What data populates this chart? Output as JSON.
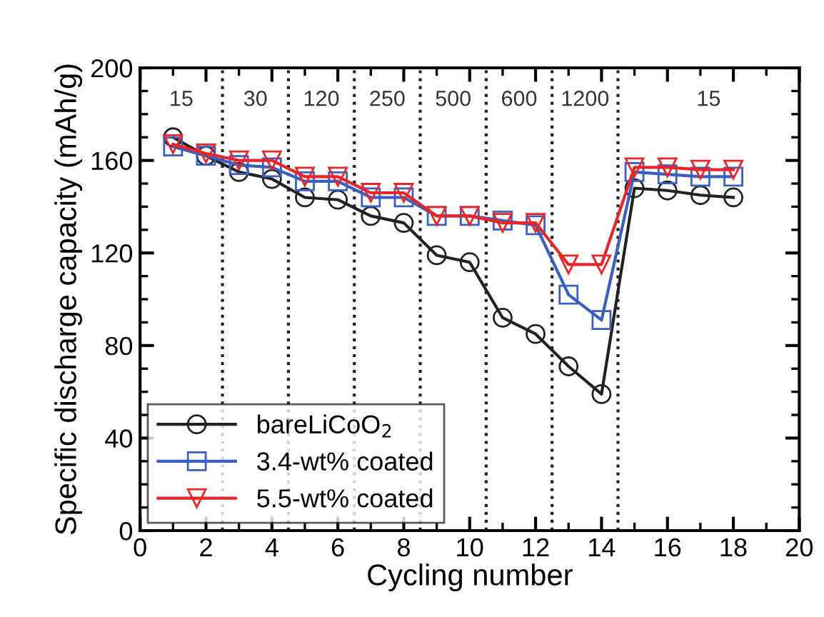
{
  "chart_data": {
    "type": "line",
    "xlabel": "Cycling number",
    "ylabel": "Specific discharge capacity (mAh/g)",
    "x": [
      1,
      2,
      3,
      4,
      5,
      6,
      7,
      8,
      9,
      10,
      11,
      12,
      13,
      14,
      15,
      16,
      17,
      18
    ],
    "series": [
      {
        "name": "bareLiCoO$_{2}$",
        "color": "#222222",
        "marker": "circle",
        "values": [
          170,
          162,
          155,
          152,
          144,
          143,
          136,
          133,
          119,
          116,
          92,
          85,
          71,
          59,
          148,
          147,
          145,
          144
        ]
      },
      {
        "name": "3.4-wt% coated",
        "color": "#3a5fc0",
        "marker": "square",
        "values": [
          166,
          162,
          158,
          157,
          151,
          151,
          144,
          144,
          136,
          136,
          134,
          132,
          102,
          91,
          155,
          154,
          153,
          153
        ]
      },
      {
        "name": "5.5-wt% coated",
        "color": "#e8262a",
        "marker": "triangle",
        "values": [
          167,
          163,
          160,
          160,
          153,
          153,
          146,
          146,
          136,
          136,
          133,
          133,
          115,
          115,
          157,
          157,
          156,
          156
        ]
      }
    ],
    "xlim": [
      0,
      20
    ],
    "ylim": [
      0,
      200
    ],
    "xticks": [
      0,
      2,
      4,
      6,
      8,
      10,
      12,
      14,
      16,
      18,
      20
    ],
    "yticks": [
      0,
      40,
      80,
      120,
      160,
      200
    ],
    "ref_lines": [
      {
        "axis": "x",
        "value": 2.5,
        "line_style": "dotted",
        "color": "#222222"
      },
      {
        "axis": "x",
        "value": 4.5,
        "line_style": "dotted",
        "color": "#222222"
      },
      {
        "axis": "x",
        "value": 6.5,
        "line_style": "dotted",
        "color": "#222222"
      },
      {
        "axis": "x",
        "value": 8.5,
        "line_style": "dotted",
        "color": "#222222"
      },
      {
        "axis": "x",
        "value": 10.5,
        "line_style": "dotted",
        "color": "#222222"
      },
      {
        "axis": "x",
        "value": 12.5,
        "line_style": "dotted",
        "color": "#222222"
      },
      {
        "axis": "x",
        "value": 14.5,
        "line_style": "dotted",
        "color": "#222222"
      }
    ],
    "annotations": [
      "15",
      "30",
      "120",
      "250",
      "500",
      "600",
      "1200",
      "15"
    ],
    "legend": "bottom left",
    "grid": false,
    "line_style": "solid"
  }
}
